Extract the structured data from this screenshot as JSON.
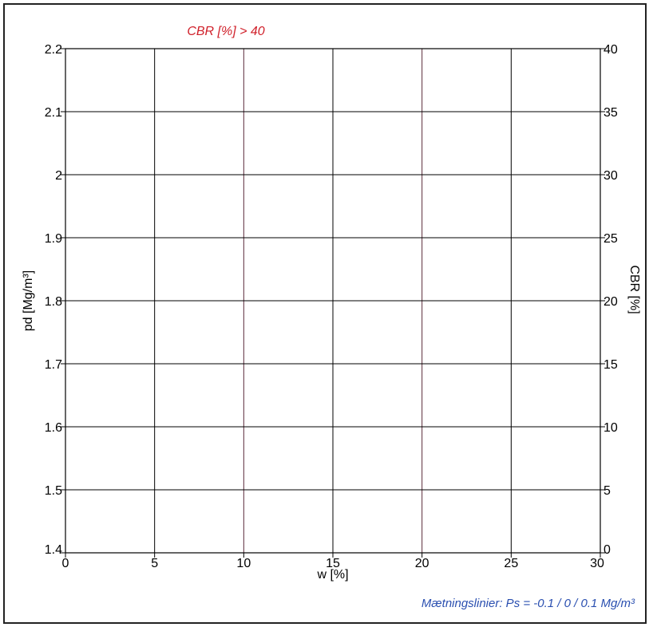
{
  "chart_data": {
    "type": "line",
    "title": "CBR [%] > 40",
    "xlabel": "w [%]",
    "ylabel": "pd [Mg/m³]",
    "y2label": "CBR [%]",
    "xlim": [
      0,
      30
    ],
    "ylim": [
      1.4,
      2.2
    ],
    "y2lim": [
      0,
      40
    ],
    "x_ticks": [
      "0",
      "5",
      "10",
      "15",
      "20",
      "25",
      "30"
    ],
    "y_ticks": [
      "1.4",
      "1.5",
      "1.6",
      "1.7",
      "1.8",
      "1.9",
      "2",
      "2.1",
      "2.2"
    ],
    "y2_ticks": [
      "0",
      "5",
      "10",
      "15",
      "20",
      "25",
      "30",
      "35",
      "40"
    ],
    "grid": true,
    "series": [],
    "annotation": "Mætningslinier: Ps = -0.1 / 0 / 0.1 Mg/m³",
    "colors": {
      "title": "#d0202a",
      "annotation": "#2a4fb0",
      "grid": "#000000",
      "vgrid_tint": "#5a2a3a"
    }
  }
}
